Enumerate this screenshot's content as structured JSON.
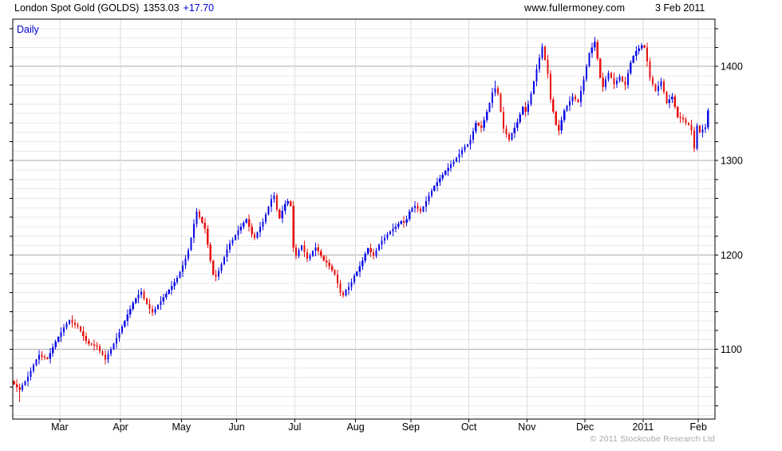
{
  "header": {
    "title": "London Spot Gold (GOLDS)",
    "price": "1353.03",
    "change": "+17.70",
    "website": "www.fullermoney.com",
    "date": "3 Feb 2011"
  },
  "footer": {
    "copyright": "© 2011 Stockcube Research Ltd"
  },
  "colors": {
    "up": "#0a0ae6",
    "down": "#e81010",
    "grid_minor": "#e9e9e9",
    "grid_major": "#ababab",
    "grid_month": "#dcdcdc",
    "axis": "#000000",
    "interval_label": "#0000cc",
    "change_text": "#0000cc",
    "copyright_text": "#a9a9a9"
  },
  "chart_data": {
    "type": "candlestick",
    "interval": "Daily",
    "title": "London Spot Gold (GOLDS)",
    "last_price": 1353.03,
    "change": 17.7,
    "legend_position": "none",
    "grid": "on",
    "y_axis": {
      "side": "right",
      "min": 1026,
      "max": 1450,
      "tick_labels": [
        1400,
        1300,
        1200,
        1100
      ],
      "minor_grid_step": 10,
      "major_grid_step": 100,
      "tick_step": 20
    },
    "x_axis": {
      "labels": [
        "Mar",
        "Apr",
        "May",
        "Jun",
        "Jul",
        "Aug",
        "Sep",
        "Oct",
        "Nov",
        "Dec",
        "2011",
        "Feb"
      ],
      "label_indices": [
        17,
        39,
        61,
        81,
        102,
        124,
        144,
        165,
        186,
        207,
        228,
        248
      ],
      "range": "Feb 2010 - Feb 2011"
    },
    "open_first": 1066,
    "closes": [
      1063,
      1060,
      1057,
      1062,
      1066,
      1071,
      1077,
      1083,
      1089,
      1094,
      1092,
      1091,
      1090,
      1096,
      1102,
      1108,
      1113,
      1118,
      1123,
      1127,
      1131,
      1128,
      1126,
      1124,
      1119,
      1114,
      1109,
      1106,
      1105,
      1104,
      1103,
      1098,
      1094,
      1089,
      1095,
      1100,
      1106,
      1112,
      1118,
      1124,
      1130,
      1137,
      1143,
      1149,
      1154,
      1158,
      1161,
      1154,
      1148,
      1143,
      1139,
      1143,
      1147,
      1151,
      1155,
      1159,
      1163,
      1167,
      1171,
      1176,
      1182,
      1189,
      1196,
      1205,
      1218,
      1233,
      1246,
      1240,
      1234,
      1228,
      1211,
      1194,
      1179,
      1177,
      1183,
      1190,
      1198,
      1206,
      1212,
      1216,
      1221,
      1226,
      1230,
      1234,
      1238,
      1230,
      1222,
      1218,
      1224,
      1230,
      1235,
      1243,
      1251,
      1259,
      1263,
      1248,
      1239,
      1247,
      1254,
      1257,
      1252,
      1208,
      1199,
      1205,
      1210,
      1203,
      1196,
      1199,
      1204,
      1208,
      1204,
      1199,
      1194,
      1192,
      1188,
      1184,
      1179,
      1170,
      1160,
      1157,
      1163,
      1166,
      1171,
      1178,
      1182,
      1188,
      1194,
      1201,
      1207,
      1203,
      1199,
      1205,
      1211,
      1215,
      1218,
      1222,
      1225,
      1228,
      1230,
      1233,
      1236,
      1234,
      1238,
      1246,
      1250,
      1252,
      1249,
      1246,
      1251,
      1257,
      1263,
      1268,
      1273,
      1277,
      1281,
      1285,
      1289,
      1292,
      1296,
      1299,
      1303,
      1307,
      1311,
      1315,
      1317,
      1322,
      1331,
      1340,
      1337,
      1335,
      1343,
      1352,
      1361,
      1372,
      1377,
      1371,
      1352,
      1334,
      1328,
      1322,
      1329,
      1335,
      1341,
      1349,
      1357,
      1352,
      1360,
      1371,
      1384,
      1397,
      1409,
      1421,
      1407,
      1392,
      1365,
      1352,
      1338,
      1332,
      1343,
      1353,
      1358,
      1363,
      1368,
      1365,
      1362,
      1374,
      1386,
      1400,
      1414,
      1420,
      1426,
      1408,
      1388,
      1378,
      1386,
      1393,
      1388,
      1381,
      1385,
      1389,
      1384,
      1380,
      1393,
      1404,
      1411,
      1416,
      1419,
      1422,
      1420,
      1405,
      1388,
      1381,
      1374,
      1379,
      1384,
      1373,
      1361,
      1365,
      1368,
      1357,
      1346,
      1345,
      1344,
      1340,
      1338,
      1332,
      1313,
      1337,
      1330,
      1333,
      1335.33,
      1353.03
    ],
    "extremes": {
      "2": {
        "low": 1044
      },
      "66": {
        "high": 1250
      },
      "174": {
        "high": 1385
      },
      "191": {
        "high": 1424
      },
      "210": {
        "high": 1431
      },
      "246": {
        "low": 1309
      }
    }
  }
}
